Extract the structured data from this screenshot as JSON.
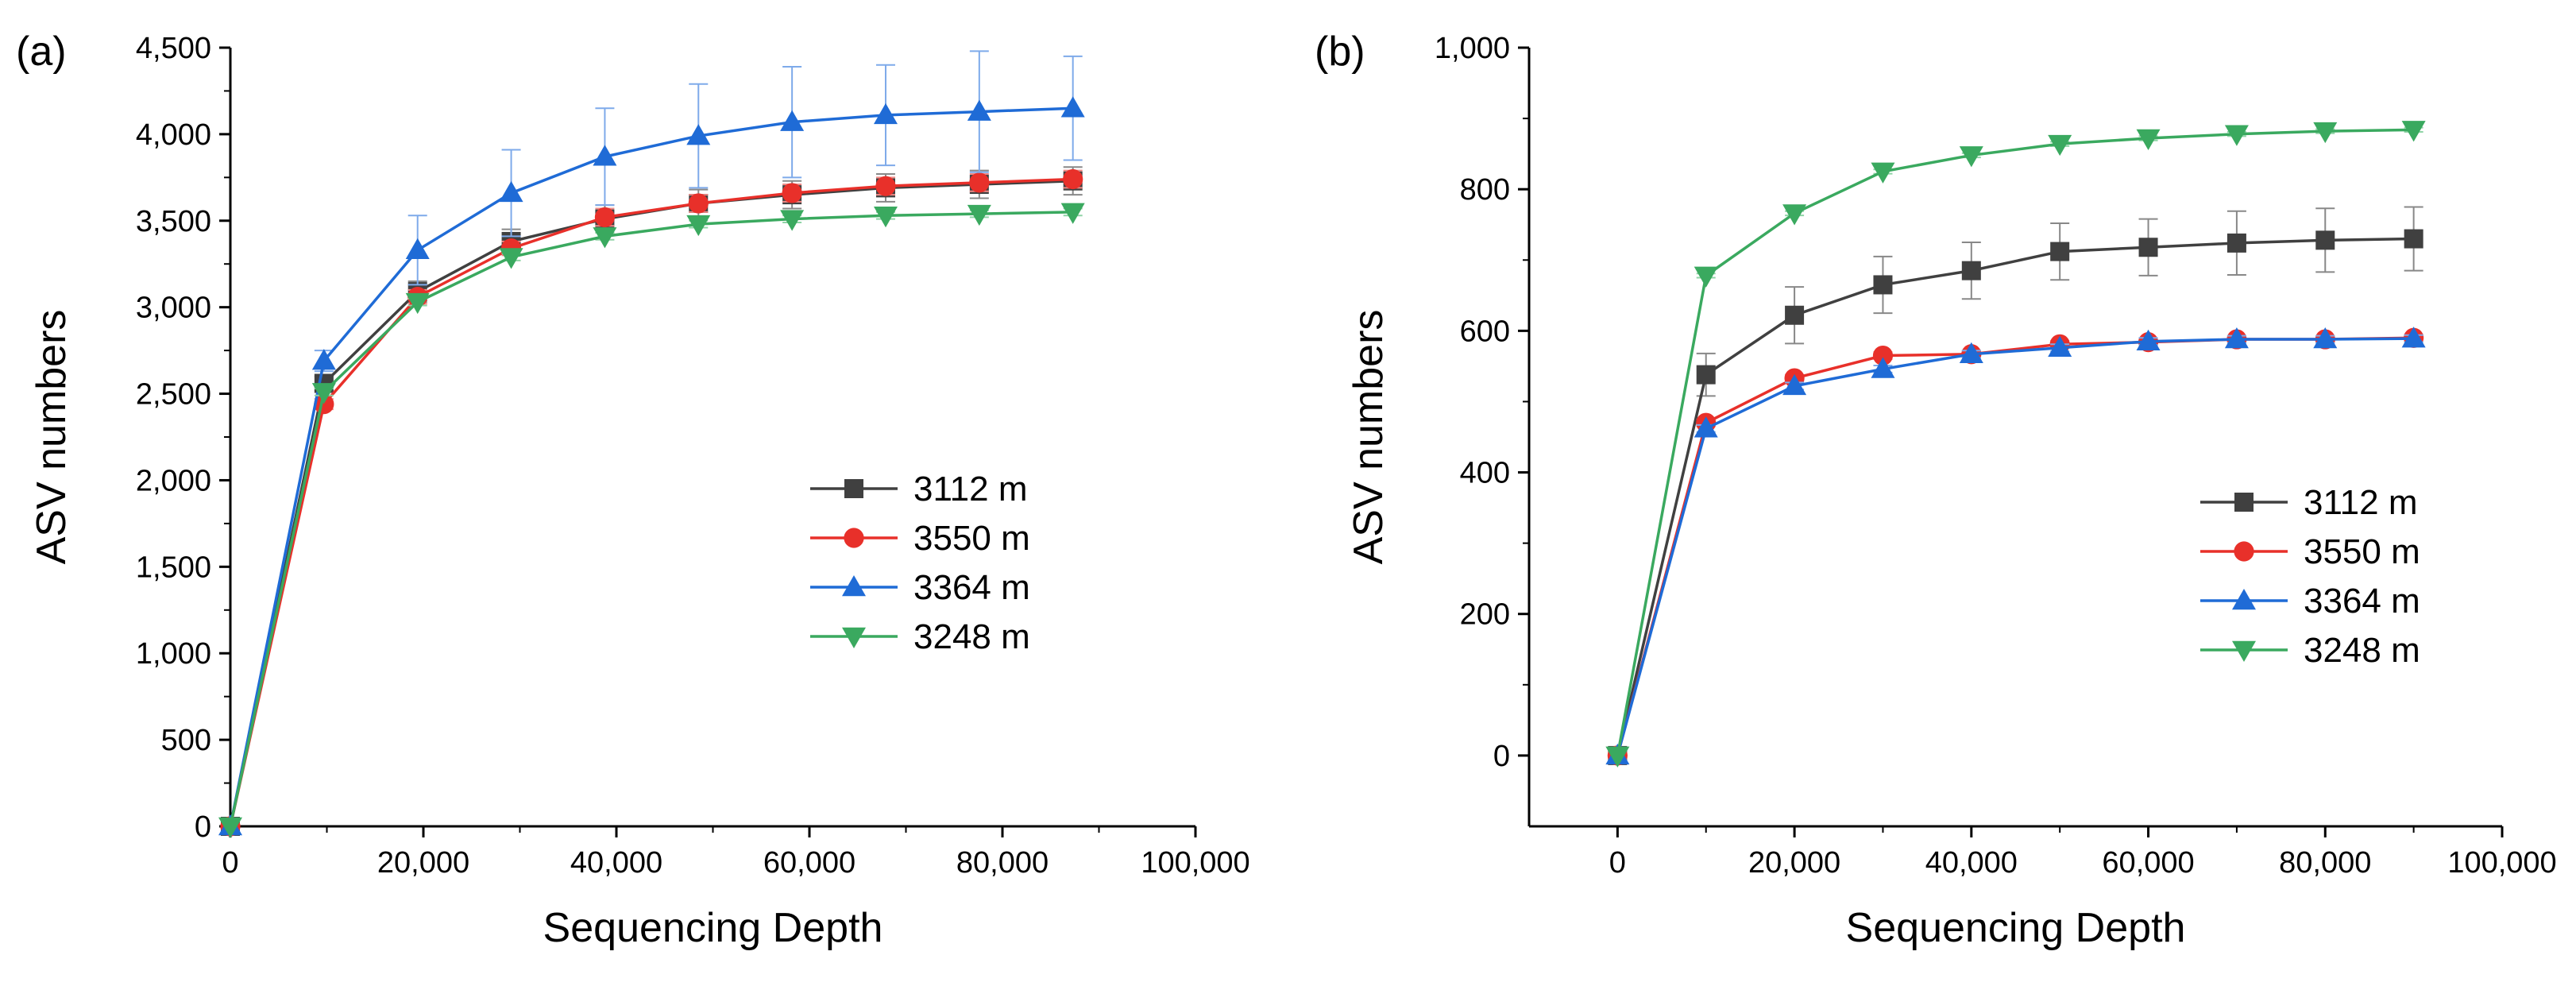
{
  "chart_data": [
    {
      "panel_label": "(a)",
      "type": "line",
      "xlabel": "Sequencing Depth",
      "ylabel": "ASV numbers",
      "xlim": [
        0,
        100000
      ],
      "ylim": [
        0,
        4500
      ],
      "x_ticks": [
        0,
        20000,
        40000,
        60000,
        80000,
        100000
      ],
      "x_tick_labels": [
        "0",
        "20,000",
        "40,000",
        "60,000",
        "80,000",
        "100,000"
      ],
      "y_ticks": [
        0,
        500,
        1000,
        1500,
        2000,
        2500,
        3000,
        3500,
        4000,
        4500
      ],
      "y_tick_labels": [
        "0",
        "500",
        "1,000",
        "1,500",
        "2,000",
        "2,500",
        "3,000",
        "3,500",
        "4,000",
        "4,500"
      ],
      "legend_position": "center-right",
      "series": [
        {
          "name": "3112 m",
          "color": "#404040",
          "marker": "square",
          "error_color": "#888888",
          "x": [
            0,
            9700,
            19400,
            29100,
            38800,
            48500,
            58200,
            67900,
            77600,
            87300
          ],
          "y": [
            0,
            2560,
            3090,
            3380,
            3510,
            3600,
            3650,
            3690,
            3710,
            3730
          ],
          "err": [
            0,
            40,
            60,
            70,
            80,
            80,
            80,
            80,
            80,
            80
          ]
        },
        {
          "name": "3550 m",
          "color": "#e8302a",
          "marker": "circle",
          "error_color": "#f08a86",
          "x": [
            0,
            9700,
            19400,
            29100,
            38800,
            48500,
            58200,
            67900,
            77600,
            87300
          ],
          "y": [
            0,
            2440,
            3060,
            3340,
            3520,
            3600,
            3660,
            3700,
            3720,
            3740
          ],
          "err": [
            0,
            30,
            40,
            40,
            50,
            50,
            50,
            50,
            50,
            50
          ]
        },
        {
          "name": "3364 m",
          "color": "#1f6bd6",
          "marker": "triangle-up",
          "error_color": "#7eaaea",
          "x": [
            0,
            9700,
            19400,
            29100,
            38800,
            48500,
            58200,
            67900,
            77600,
            87300
          ],
          "y": [
            0,
            2690,
            3330,
            3660,
            3870,
            3990,
            4070,
            4110,
            4130,
            4150
          ],
          "err": [
            0,
            60,
            200,
            250,
            280,
            300,
            320,
            290,
            350,
            300
          ]
        },
        {
          "name": "3248 m",
          "color": "#3aa95f",
          "marker": "triangle-down",
          "error_color": "#8fd4a6",
          "x": [
            0,
            9700,
            19400,
            29100,
            38800,
            48500,
            58200,
            67900,
            77600,
            87300
          ],
          "y": [
            0,
            2510,
            3030,
            3290,
            3410,
            3480,
            3510,
            3530,
            3540,
            3550
          ],
          "err": [
            0,
            20,
            20,
            20,
            20,
            20,
            20,
            20,
            20,
            20
          ]
        }
      ]
    },
    {
      "panel_label": "(b)",
      "type": "line",
      "xlabel": "Sequencing Depth",
      "ylabel": "ASV numbers",
      "xlim": [
        -10000,
        100000
      ],
      "ylim": [
        -100,
        1000
      ],
      "x_ticks": [
        0,
        20000,
        40000,
        60000,
        80000,
        100000
      ],
      "x_tick_labels": [
        "0",
        "20,000",
        "40,000",
        "60,000",
        "80,000",
        "100,000"
      ],
      "y_ticks": [
        0,
        200,
        400,
        600,
        800,
        1000
      ],
      "y_tick_labels": [
        "0",
        "200",
        "400",
        "600",
        "800",
        "1,000"
      ],
      "legend_position": "right",
      "series": [
        {
          "name": "3112 m",
          "color": "#404040",
          "marker": "square",
          "error_color": "#888888",
          "x": [
            0,
            10000,
            20000,
            30000,
            40000,
            50000,
            60000,
            70000,
            80000,
            90000
          ],
          "y": [
            0,
            538,
            622,
            665,
            685,
            712,
            718,
            724,
            728,
            730
          ],
          "err": [
            0,
            30,
            40,
            40,
            40,
            40,
            40,
            45,
            45,
            45
          ]
        },
        {
          "name": "3550 m",
          "color": "#e8302a",
          "marker": "circle",
          "error_color": "#f08a86",
          "x": [
            0,
            10000,
            20000,
            30000,
            40000,
            50000,
            60000,
            70000,
            80000,
            90000
          ],
          "y": [
            0,
            470,
            533,
            565,
            567,
            581,
            584,
            588,
            588,
            590
          ],
          "err": [
            0,
            5,
            5,
            5,
            5,
            5,
            5,
            5,
            5,
            5
          ]
        },
        {
          "name": "3364 m",
          "color": "#1f6bd6",
          "marker": "triangle-up",
          "error_color": "#7eaaea",
          "x": [
            0,
            10000,
            20000,
            30000,
            40000,
            50000,
            60000,
            70000,
            80000,
            90000
          ],
          "y": [
            0,
            462,
            522,
            546,
            567,
            576,
            585,
            588,
            588,
            589
          ],
          "err": [
            0,
            5,
            5,
            5,
            5,
            5,
            5,
            5,
            5,
            5
          ]
        },
        {
          "name": "3248 m",
          "color": "#3aa95f",
          "marker": "triangle-down",
          "error_color": "#8fd4a6",
          "x": [
            0,
            10000,
            20000,
            30000,
            40000,
            50000,
            60000,
            70000,
            80000,
            90000
          ],
          "y": [
            0,
            678,
            766,
            825,
            848,
            864,
            872,
            878,
            882,
            884
          ],
          "err": [
            0,
            3,
            3,
            3,
            3,
            3,
            3,
            3,
            3,
            3
          ]
        }
      ]
    }
  ]
}
